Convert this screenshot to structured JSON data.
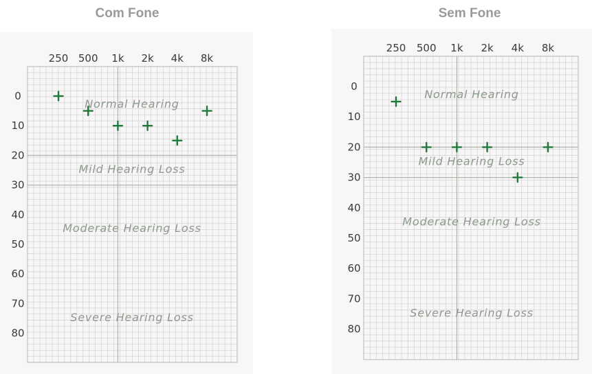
{
  "chart_data": [
    {
      "type": "scatter",
      "title": "Com Fone",
      "x_tick_labels": [
        "250",
        "500",
        "1k",
        "2k",
        "4k",
        "8k"
      ],
      "y_tick_labels": [
        "0",
        "10",
        "20",
        "30",
        "40",
        "50",
        "60",
        "70",
        "80"
      ],
      "ylim": [
        -10,
        90
      ],
      "y_inverted": true,
      "grid": true,
      "bands": [
        {
          "label": "Normal Hearing",
          "y": 2.5
        },
        {
          "label": "Mild Hearing Loss",
          "y": 24.5
        },
        {
          "label": "Moderate Hearing Loss",
          "y": 44.5
        },
        {
          "label": "Severe Hearing Loss",
          "y": 74.5
        }
      ],
      "series": [
        {
          "x": [
            "250",
            "500",
            "1k",
            "2k",
            "4k",
            "8k"
          ],
          "y": [
            0,
            5,
            10,
            10,
            15,
            5
          ]
        }
      ]
    },
    {
      "type": "scatter",
      "title": "Sem Fone",
      "x_tick_labels": [
        "250",
        "500",
        "1k",
        "2k",
        "4k",
        "8k"
      ],
      "y_tick_labels": [
        "0",
        "10",
        "20",
        "30",
        "40",
        "50",
        "60",
        "70",
        "80"
      ],
      "ylim": [
        -10,
        90
      ],
      "y_inverted": true,
      "grid": true,
      "bands": [
        {
          "label": "Normal Hearing",
          "y": 2.5
        },
        {
          "label": "Mild Hearing Loss",
          "y": 24.5
        },
        {
          "label": "Moderate Hearing Loss",
          "y": 44.5
        },
        {
          "label": "Severe Hearing Loss",
          "y": 74.5
        }
      ],
      "series": [
        {
          "x": [
            "250",
            "500",
            "1k",
            "2k",
            "4k",
            "8k"
          ],
          "y": [
            5,
            20,
            20,
            20,
            30,
            20
          ]
        }
      ]
    }
  ],
  "colors": {
    "marker": "#1f7a3c",
    "grid_minor": "#d6d6d6",
    "grid_major": "#a9b8a9",
    "card_bg": "#f8f6f6",
    "title": "#9a9a9a"
  }
}
